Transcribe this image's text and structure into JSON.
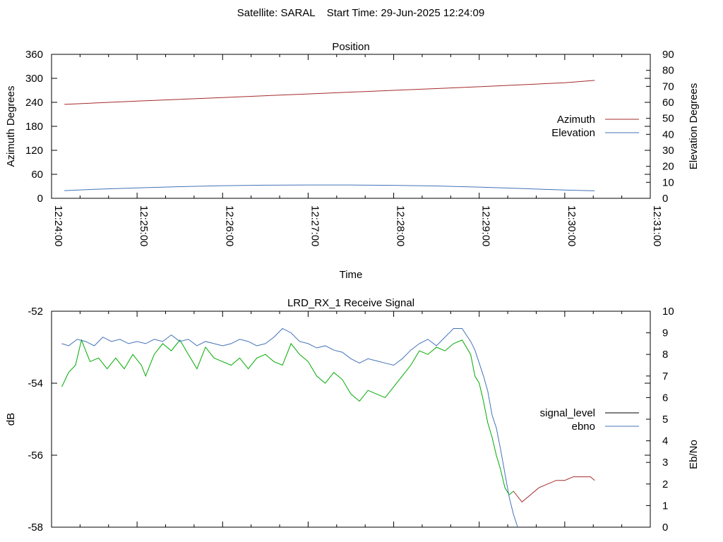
{
  "header": {
    "title": "Satellite: SARAL    Start Time: 29-Jun-2025 12:24:09"
  },
  "chart_data": [
    {
      "type": "line",
      "title": "Position",
      "xlabel": "Time",
      "ylabel": "Azimuth Degrees",
      "y2label": "Elevation Degrees",
      "x_unit": "minutes after 12:24:00",
      "xlim": [
        0,
        7
      ],
      "ylim": [
        0,
        360
      ],
      "y2lim": [
        0,
        90
      ],
      "x_ticks": [
        "12:24:00",
        "12:25:00",
        "12:26:00",
        "12:27:00",
        "12:28:00",
        "12:29:00",
        "12:30:00",
        "12:31:00"
      ],
      "y_ticks": [
        "0",
        "60",
        "120",
        "180",
        "240",
        "300",
        "360"
      ],
      "y2_ticks": [
        "0",
        "10",
        "20",
        "30",
        "40",
        "50",
        "60",
        "70",
        "80",
        "90"
      ],
      "legend_position": "right",
      "grid": false,
      "series": [
        {
          "name": "Azimuth",
          "axis": "y",
          "color": "#a52a2a",
          "x": [
            0.15,
            1.0,
            2.0,
            3.0,
            4.0,
            5.0,
            6.0,
            6.35
          ],
          "y": [
            235,
            243,
            252,
            261,
            270,
            279,
            289,
            295
          ]
        },
        {
          "name": "Elevation",
          "axis": "y2",
          "color": "#4372b8",
          "x": [
            0.15,
            0.5,
            1.0,
            1.5,
            2.0,
            2.5,
            3.0,
            3.5,
            4.0,
            4.5,
            5.0,
            5.5,
            6.0,
            6.35
          ],
          "y": [
            4.8,
            5.6,
            6.5,
            7.3,
            7.9,
            8.2,
            8.3,
            8.3,
            8.1,
            7.7,
            7.0,
            6.1,
            5.2,
            4.7
          ]
        }
      ]
    },
    {
      "type": "line",
      "title": "LRD_RX_1 Receive Signal",
      "ylabel": "dB",
      "y2label": "Eb/No",
      "xlim": [
        0,
        7
      ],
      "ylim": [
        -58,
        -52
      ],
      "y2lim": [
        0,
        10
      ],
      "y_ticks": [
        "-52",
        "-54",
        "-56",
        "-58"
      ],
      "y2_ticks": [
        "0",
        "1",
        "2",
        "3",
        "4",
        "5",
        "6",
        "7",
        "8",
        "9",
        "10"
      ],
      "legend_position": "right",
      "grid": false,
      "series": [
        {
          "name": "signal_level",
          "axis": "y",
          "color": "#00aa00",
          "tail_color": "#a52a2a",
          "tail_from_x": 5.4,
          "x": [
            0.12,
            0.2,
            0.28,
            0.35,
            0.45,
            0.55,
            0.65,
            0.75,
            0.85,
            0.95,
            1.05,
            1.1,
            1.2,
            1.3,
            1.4,
            1.5,
            1.6,
            1.7,
            1.8,
            1.9,
            2.0,
            2.1,
            2.2,
            2.3,
            2.4,
            2.5,
            2.6,
            2.7,
            2.8,
            2.9,
            3.0,
            3.1,
            3.2,
            3.3,
            3.4,
            3.5,
            3.6,
            3.7,
            3.8,
            3.9,
            4.0,
            4.1,
            4.2,
            4.3,
            4.4,
            4.5,
            4.6,
            4.7,
            4.8,
            4.9,
            4.95,
            5.0,
            5.05,
            5.1,
            5.15,
            5.2,
            5.25,
            5.3,
            5.35,
            5.4,
            5.5,
            5.6,
            5.7,
            5.8,
            5.9,
            6.0,
            6.1,
            6.2,
            6.3,
            6.35
          ],
          "y": [
            -54.1,
            -53.7,
            -53.5,
            -52.8,
            -53.4,
            -53.3,
            -53.6,
            -53.3,
            -53.6,
            -53.2,
            -53.5,
            -53.8,
            -53.2,
            -52.9,
            -53.1,
            -52.8,
            -53.2,
            -53.6,
            -53.0,
            -53.3,
            -53.4,
            -53.5,
            -53.3,
            -53.6,
            -53.3,
            -53.2,
            -53.4,
            -53.5,
            -52.9,
            -53.2,
            -53.4,
            -53.8,
            -54.0,
            -53.7,
            -53.9,
            -54.3,
            -54.5,
            -54.2,
            -54.3,
            -54.4,
            -54.1,
            -53.8,
            -53.5,
            -53.1,
            -53.2,
            -53.0,
            -53.1,
            -52.9,
            -52.8,
            -53.2,
            -53.8,
            -54.0,
            -54.5,
            -55.1,
            -55.5,
            -56.0,
            -56.4,
            -56.9,
            -57.1,
            -57.0,
            -57.3,
            -57.1,
            -56.9,
            -56.8,
            -56.7,
            -56.7,
            -56.6,
            -56.6,
            -56.6,
            -56.7
          ]
        },
        {
          "name": "ebno",
          "axis": "y2",
          "color": "#4372b8",
          "x": [
            0.12,
            0.2,
            0.3,
            0.4,
            0.5,
            0.6,
            0.7,
            0.8,
            0.9,
            1.0,
            1.1,
            1.2,
            1.3,
            1.4,
            1.5,
            1.6,
            1.7,
            1.8,
            1.9,
            2.0,
            2.1,
            2.2,
            2.3,
            2.4,
            2.5,
            2.6,
            2.7,
            2.8,
            2.9,
            3.0,
            3.1,
            3.2,
            3.3,
            3.4,
            3.5,
            3.6,
            3.7,
            3.8,
            3.9,
            4.0,
            4.1,
            4.2,
            4.3,
            4.4,
            4.5,
            4.6,
            4.7,
            4.8,
            4.9,
            4.95,
            5.0,
            5.05,
            5.1,
            5.15,
            5.2,
            5.25,
            5.3,
            5.35,
            5.4,
            5.45
          ],
          "y": [
            8.5,
            8.4,
            8.7,
            8.6,
            8.4,
            8.8,
            8.6,
            8.7,
            8.5,
            8.6,
            8.5,
            8.7,
            8.6,
            8.9,
            8.6,
            8.7,
            8.4,
            8.6,
            8.5,
            8.4,
            8.5,
            8.7,
            8.6,
            8.4,
            8.5,
            8.8,
            9.2,
            9.0,
            8.6,
            8.5,
            8.3,
            8.4,
            8.2,
            8.1,
            7.8,
            7.6,
            7.8,
            7.7,
            7.6,
            7.5,
            7.8,
            8.2,
            8.5,
            8.7,
            8.4,
            8.8,
            9.2,
            9.2,
            8.6,
            8.2,
            7.6,
            7.0,
            6.3,
            5.2,
            4.6,
            3.6,
            2.5,
            1.4,
            0.6,
            0.0
          ]
        }
      ]
    }
  ]
}
